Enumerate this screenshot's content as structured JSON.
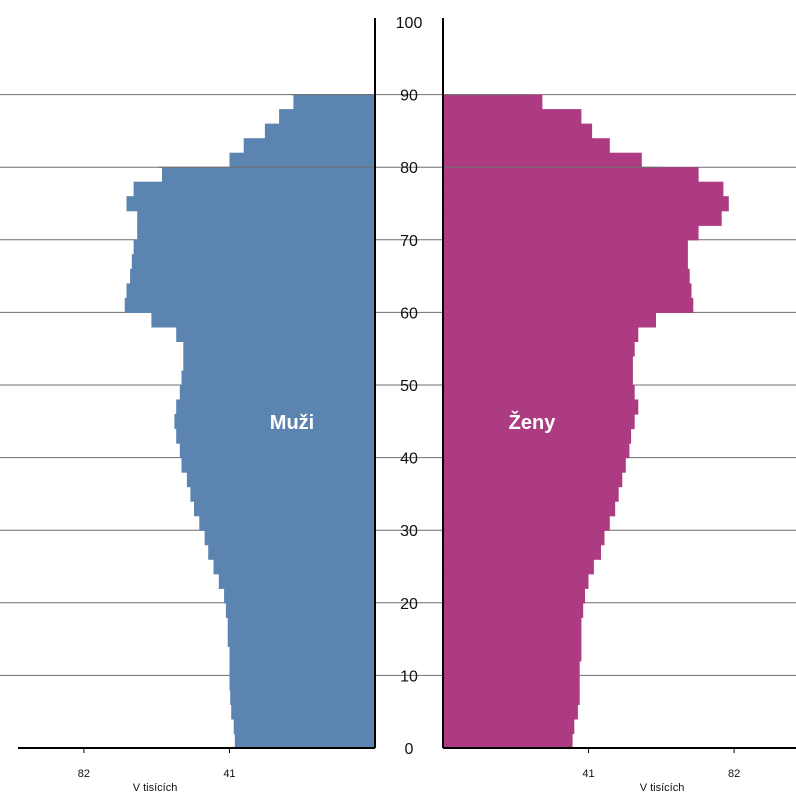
{
  "chart_data": {
    "type": "bar",
    "orientation": "horizontal",
    "subtype": "population-pyramid",
    "y_axis": {
      "ticks": [
        0,
        10,
        20,
        30,
        40,
        50,
        60,
        70,
        80,
        90,
        100
      ],
      "range": [
        0,
        100
      ]
    },
    "x_axis": {
      "ticks": [
        41,
        82
      ],
      "unit_label": "V tisících",
      "range": [
        0,
        100
      ]
    },
    "grid": true,
    "series": [
      {
        "name": "Muži",
        "color": "#5b84b1",
        "side": "left",
        "ages": [
          0,
          2,
          4,
          6,
          8,
          10,
          12,
          14,
          16,
          18,
          20,
          22,
          24,
          26,
          28,
          30,
          32,
          34,
          36,
          38,
          40,
          42,
          44,
          46,
          48,
          50,
          52,
          54,
          56,
          58,
          60,
          62,
          64,
          66,
          68,
          70,
          72,
          74,
          76,
          78,
          80,
          82,
          84,
          86,
          88
        ],
        "values": [
          39.5,
          39.8,
          40.5,
          40.8,
          41,
          41,
          41,
          41.5,
          41.5,
          42,
          42.5,
          44,
          45.5,
          47,
          48,
          49.5,
          51,
          52,
          53,
          54.5,
          55,
          56,
          56.5,
          56,
          55,
          54.5,
          54,
          54,
          56,
          63,
          70.5,
          70,
          69,
          68.5,
          68,
          67,
          67,
          70,
          68,
          60,
          41,
          37,
          31,
          27,
          23
        ],
        "reference_lines": [
          {
            "age": 90,
            "value": 24
          },
          {
            "age": 80,
            "value": 61
          }
        ]
      },
      {
        "name": "Ženy",
        "color": "#ad3b82",
        "side": "right",
        "ages": [
          0,
          2,
          4,
          6,
          8,
          10,
          12,
          14,
          16,
          18,
          20,
          22,
          24,
          26,
          28,
          30,
          32,
          34,
          36,
          38,
          40,
          42,
          44,
          46,
          48,
          50,
          52,
          54,
          56,
          58,
          60,
          62,
          64,
          66,
          68,
          70,
          72,
          74,
          76,
          78,
          80,
          82,
          84,
          86,
          88
        ],
        "values": [
          36.5,
          37,
          38,
          38.5,
          38.5,
          38.5,
          39,
          39,
          39,
          39.5,
          40,
          41,
          42.5,
          44.5,
          45.5,
          47,
          48.5,
          49.5,
          50.5,
          51.5,
          52.5,
          53,
          54,
          55,
          54,
          53.5,
          53.5,
          54,
          55,
          60,
          70.5,
          70,
          69.5,
          69,
          69,
          72,
          78.5,
          80.5,
          79,
          72,
          56,
          47,
          42,
          39,
          28
        ],
        "reference_lines": [
          {
            "age": 90,
            "value": 23
          },
          {
            "age": 80,
            "value": 61
          }
        ]
      }
    ]
  }
}
